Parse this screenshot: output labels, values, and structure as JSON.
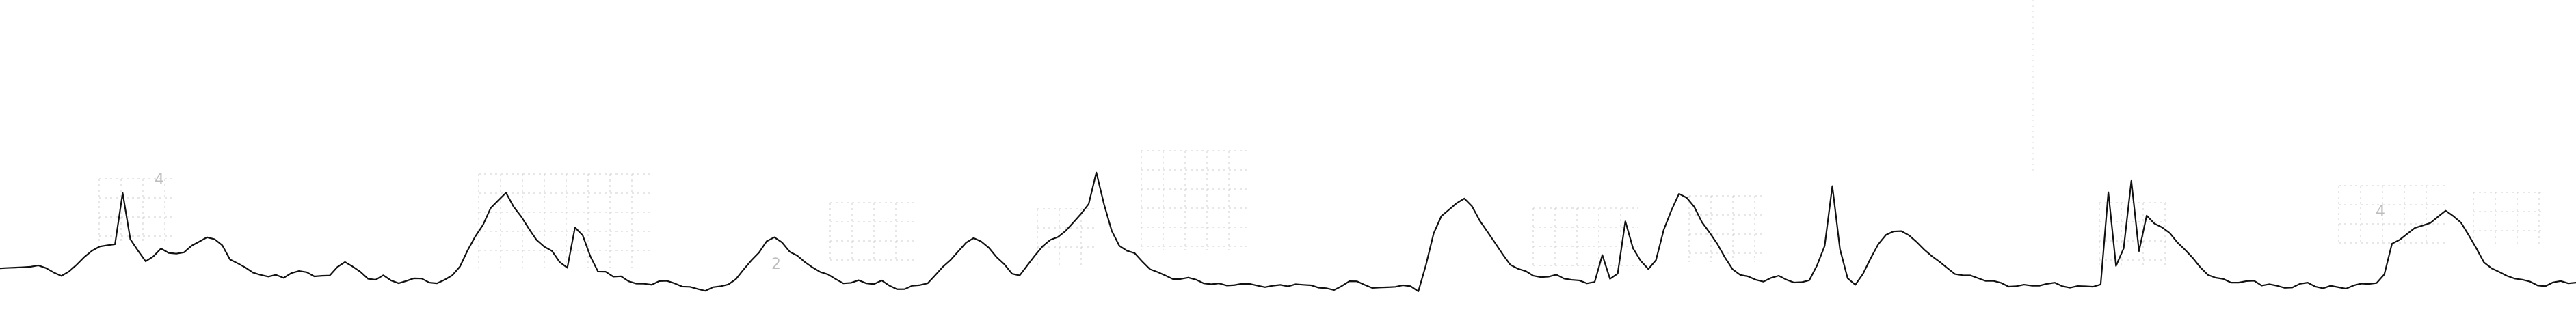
{
  "figure": {
    "type": "signal_trace",
    "background": "#ffffff",
    "trace_color": "#111111",
    "grid_color": "#cfcfcf",
    "faint_marks": [
      "4",
      "2",
      "4"
    ],
    "chart_data": {
      "type": "line",
      "series": [
        {
          "values": [
            0.18,
            0.19,
            0.17,
            0.16,
            0.18,
            0.2,
            0.17,
            0.14,
            0.12,
            0.14,
            0.18,
            0.26,
            0.33,
            0.36,
            0.37,
            0.39,
            0.82,
            0.4,
            0.31,
            0.24,
            0.28,
            0.34,
            0.31,
            0.3,
            0.29,
            0.35,
            0.41,
            0.45,
            0.42,
            0.37,
            0.25,
            0.2,
            0.16,
            0.14,
            0.13,
            0.1,
            0.11,
            0.09,
            0.12,
            0.13,
            0.14,
            0.12,
            0.11,
            0.1,
            0.18,
            0.22,
            0.17,
            0.14,
            0.1,
            0.08,
            0.1,
            0.06,
            0.04,
            0.05,
            0.08,
            0.1,
            0.06,
            0.03,
            0.06,
            0.11,
            0.18,
            0.32,
            0.46,
            0.56,
            0.68,
            0.74,
            0.82,
            0.7,
            0.61,
            0.52,
            0.43,
            0.35,
            0.3,
            0.22,
            0.18,
            0.52,
            0.46,
            0.29,
            0.14,
            0.12,
            0.09,
            0.11,
            0.06,
            0.04,
            0.05,
            0.03,
            0.04,
            0.05,
            0.05,
            0.02,
            0.01,
            0.0,
            -0.02,
            -0.01,
            0.0,
            0.04,
            0.09,
            0.16,
            0.24,
            0.31,
            0.39,
            0.42,
            0.4,
            0.33,
            0.28,
            0.22,
            0.18,
            0.13,
            0.1,
            0.08,
            0.06,
            0.05,
            0.06,
            0.04,
            0.03,
            0.05,
            0.02,
            0.01,
            0.0,
            0.01,
            0.02,
            0.04,
            0.1,
            0.18,
            0.26,
            0.33,
            0.38,
            0.42,
            0.4,
            0.34,
            0.26,
            0.22,
            0.14,
            0.1,
            0.18,
            0.28,
            0.36,
            0.41,
            0.45,
            0.51,
            0.56,
            0.62,
            0.72,
            1.0,
            0.72,
            0.5,
            0.38,
            0.32,
            0.28,
            0.22,
            0.17,
            0.14,
            0.11,
            0.09,
            0.08,
            0.07,
            0.06,
            0.05,
            0.04,
            0.04,
            0.03,
            0.03,
            0.02,
            0.02,
            0.03,
            0.02,
            0.02,
            0.03,
            0.02,
            0.02,
            0.01,
            0.03,
            0.02,
            0.0,
            -0.02,
            0.02,
            0.05,
            0.04,
            0.03,
            0.02,
            0.01,
            0.0,
            0.01,
            0.02,
            0.0,
            -0.03,
            0.22,
            0.48,
            0.61,
            0.67,
            0.73,
            0.76,
            0.7,
            0.6,
            0.5,
            0.38,
            0.28,
            0.2,
            0.16,
            0.14,
            0.12,
            0.11,
            0.09,
            0.1,
            0.08,
            0.07,
            0.06,
            0.05,
            0.07,
            0.28,
            0.06,
            0.12,
            0.58,
            0.34,
            0.24,
            0.18,
            0.24,
            0.48,
            0.66,
            0.82,
            0.78,
            0.7,
            0.58,
            0.48,
            0.36,
            0.25,
            0.17,
            0.12,
            0.1,
            0.08,
            0.06,
            0.07,
            0.09,
            0.08,
            0.06,
            0.05,
            0.07,
            0.2,
            0.35,
            0.86,
            0.34,
            0.1,
            0.03,
            0.12,
            0.26,
            0.37,
            0.44,
            0.49,
            0.51,
            0.46,
            0.39,
            0.33,
            0.27,
            0.21,
            0.17,
            0.14,
            0.12,
            0.1,
            0.08,
            0.06,
            0.05,
            0.04,
            0.03,
            0.03,
            0.02,
            0.01,
            0.02,
            0.03,
            0.04,
            0.03,
            0.02,
            0.01,
            0.0,
            0.01,
            0.03,
            0.82,
            0.2,
            0.36,
            0.92,
            0.3,
            0.62,
            0.56,
            0.52,
            0.48,
            0.41,
            0.33,
            0.24,
            0.17,
            0.12,
            0.09,
            0.08,
            0.06,
            0.05,
            0.04,
            0.05,
            0.03,
            0.04,
            0.02,
            0.01,
            0.01,
            0.02,
            0.03,
            0.02,
            0.01,
            0.02,
            0.01,
            0.0,
            0.01,
            0.02,
            0.04,
            0.06,
            0.12,
            0.38,
            0.42,
            0.46,
            0.5,
            0.54,
            0.58,
            0.62,
            0.66,
            0.62,
            0.56,
            0.44,
            0.34,
            0.24,
            0.18,
            0.13,
            0.1,
            0.08,
            0.06,
            0.05,
            0.04,
            0.03,
            0.04,
            0.05,
            0.04,
            0.04
          ]
        }
      ]
    }
  }
}
